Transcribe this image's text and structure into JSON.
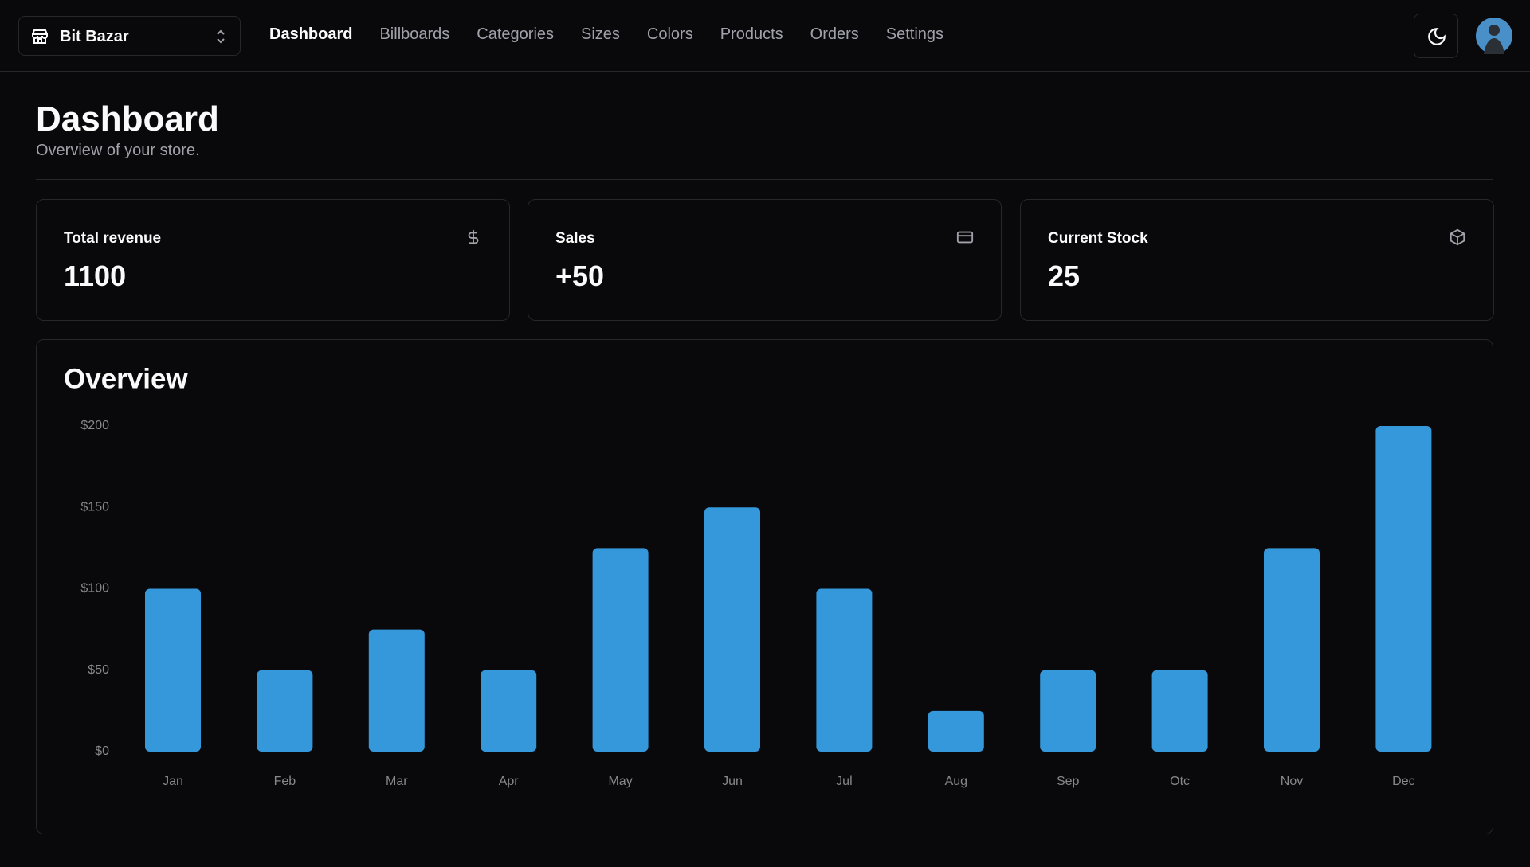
{
  "header": {
    "store": "Bit Bazar",
    "nav": [
      "Dashboard",
      "Billboards",
      "Categories",
      "Sizes",
      "Colors",
      "Products",
      "Orders",
      "Settings"
    ]
  },
  "page": {
    "title": "Dashboard",
    "subtitle": "Overview of your store."
  },
  "cards": [
    {
      "title": "Total revenue",
      "value": 1100
    },
    {
      "title": "Sales",
      "value": "+50"
    },
    {
      "title": "Current Stock",
      "value": 25
    }
  ],
  "chart_data": {
    "type": "bar",
    "title": "Overview",
    "categories": [
      "Jan",
      "Feb",
      "Mar",
      "Apr",
      "May",
      "Jun",
      "Jul",
      "Aug",
      "Sep",
      "Otc",
      "Nov",
      "Dec"
    ],
    "values": [
      100,
      50,
      75,
      50,
      125,
      150,
      100,
      25,
      50,
      50,
      125,
      200
    ],
    "color": "#3498db",
    "ylim": [
      0,
      200
    ],
    "yticks": [
      {
        "value": 0,
        "label": "$0"
      },
      {
        "value": 50,
        "label": "$50"
      },
      {
        "value": 100,
        "label": "$100"
      },
      {
        "value": 150,
        "label": "$150"
      },
      {
        "value": 200,
        "label": "$200"
      }
    ],
    "grid": false
  }
}
